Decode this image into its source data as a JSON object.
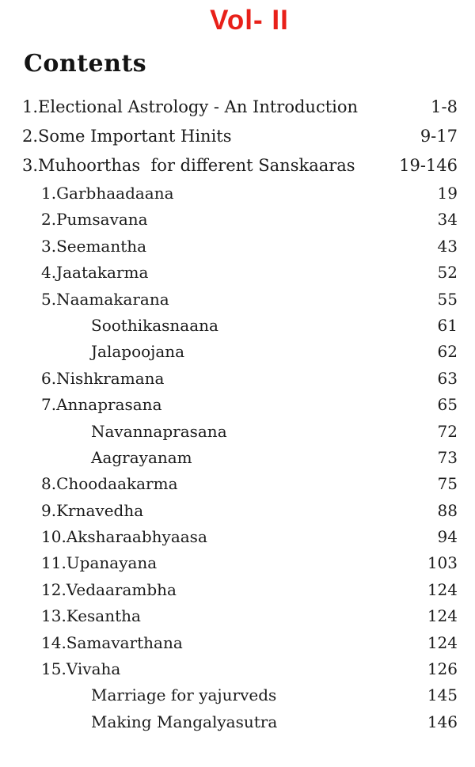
{
  "page": {
    "volume_title": "Vol- II",
    "heading": "Contents",
    "accent_color": "#e82019",
    "text_color": "#1b1b1b",
    "background_color": "#ffffff"
  },
  "toc": {
    "entries": [
      {
        "level": 0,
        "label": "1.Electional Astrology - An Introduction",
        "page": "1-8"
      },
      {
        "level": 0,
        "label": "2.Some Important Hinits",
        "page": "9-17"
      },
      {
        "level": 0,
        "label": "3.Muhoorthas  for different Sanskaaras",
        "page": "19-146"
      },
      {
        "level": 1,
        "label": "1.Garbhaadaana",
        "page": "19"
      },
      {
        "level": 1,
        "label": "2.Pumsavana",
        "page": "34"
      },
      {
        "level": 1,
        "label": "3.Seemantha",
        "page": "43"
      },
      {
        "level": 1,
        "label": "4.Jaatakarma",
        "page": "52"
      },
      {
        "level": 1,
        "label": "5.Naamakarana",
        "page": "55"
      },
      {
        "level": 2,
        "label": "Soothikasnaana",
        "page": "61"
      },
      {
        "level": 2,
        "label": "Jalapoojana",
        "page": "62"
      },
      {
        "level": 1,
        "label": "6.Nishkramana",
        "page": "63"
      },
      {
        "level": 1,
        "label": "7.Annaprasana",
        "page": "65"
      },
      {
        "level": 2,
        "label": "Navannaprasana",
        "page": "72"
      },
      {
        "level": 2,
        "label": "Aagrayanam",
        "page": "73"
      },
      {
        "level": 1,
        "label": "8.Choodaakarma",
        "page": "75"
      },
      {
        "level": 1,
        "label": "9.Krnavedha",
        "page": "88"
      },
      {
        "level": 1,
        "label": "10.Aksharaabhyaasa",
        "page": "94"
      },
      {
        "level": 1,
        "label": "11.Upanayana",
        "page": "103"
      },
      {
        "level": 1,
        "label": "12.Vedaarambha",
        "page": "124"
      },
      {
        "level": 1,
        "label": "13.Kesantha",
        "page": "124"
      },
      {
        "level": 1,
        "label": "14.Samavarthana",
        "page": "124"
      },
      {
        "level": 1,
        "label": "15.Vivaha",
        "page": "126"
      },
      {
        "level": 2,
        "label": "Marriage for yajurveds",
        "page": "145"
      },
      {
        "level": 2,
        "label": "Making Mangalyasutra",
        "page": "146"
      }
    ]
  }
}
